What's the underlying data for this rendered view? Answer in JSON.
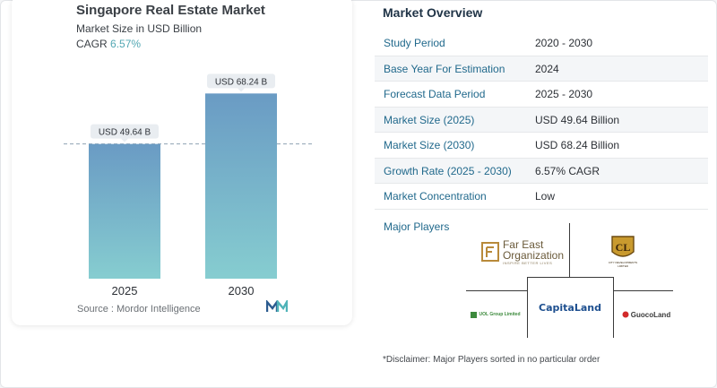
{
  "chart_card": {
    "title": "Singapore Real Estate Market",
    "subtitle": "Market Size in USD Billion",
    "cagr_label": "CAGR",
    "cagr_value": "6.57%",
    "source": "Source :  Mordor Intelligence",
    "logo_icon": "mordor-intelligence-logo-icon"
  },
  "chart_data": {
    "type": "bar",
    "categories": [
      "2025",
      "2030"
    ],
    "values": [
      49.64,
      68.24
    ],
    "data_labels": [
      "USD 49.64 B",
      "USD 68.24 B"
    ],
    "title": "Singapore Real Estate Market",
    "subtitle": "Market Size in USD Billion",
    "xlabel": "",
    "ylabel": "",
    "ylim": [
      0,
      70
    ],
    "grid": false,
    "reference_line": "dashed line at 2025 value",
    "colors": {
      "bar_top": "#6a9bc4",
      "bar_bottom": "#86cdd0",
      "label_bg": "#e9edf1",
      "dash": "#8fa3b3"
    }
  },
  "overview": {
    "title": "Market Overview",
    "rows": [
      {
        "label": "Study Period",
        "value": "2020 - 2030"
      },
      {
        "label": "Base Year For Estimation",
        "value": "2024"
      },
      {
        "label": "Forecast Data Period",
        "value": "2025 - 2030"
      },
      {
        "label": "Market Size (2025)",
        "value": "USD 49.64 Billion"
      },
      {
        "label": "Market Size (2030)",
        "value": "USD 68.24 Billion"
      },
      {
        "label": "Growth Rate (2025 - 2030)",
        "value": "6.57% CAGR"
      },
      {
        "label": "Market Concentration",
        "value": "Low"
      }
    ],
    "major_players_label": "Major Players",
    "players": {
      "far_east": {
        "name_line1": "Far East",
        "name_line2": "Organization",
        "tagline": "INSPIRE BETTER LIVES"
      },
      "city_developments": {
        "mark": "CL",
        "caption": "CITY DEVELOPMENTS LIMITED"
      },
      "uol": {
        "name": "UOL Group Limited"
      },
      "capitaland": {
        "name": "CapitaLand"
      },
      "guocoland": {
        "name": "GuocoLand"
      }
    },
    "disclaimer": "*Disclaimer: Major Players sorted in no particular order"
  }
}
